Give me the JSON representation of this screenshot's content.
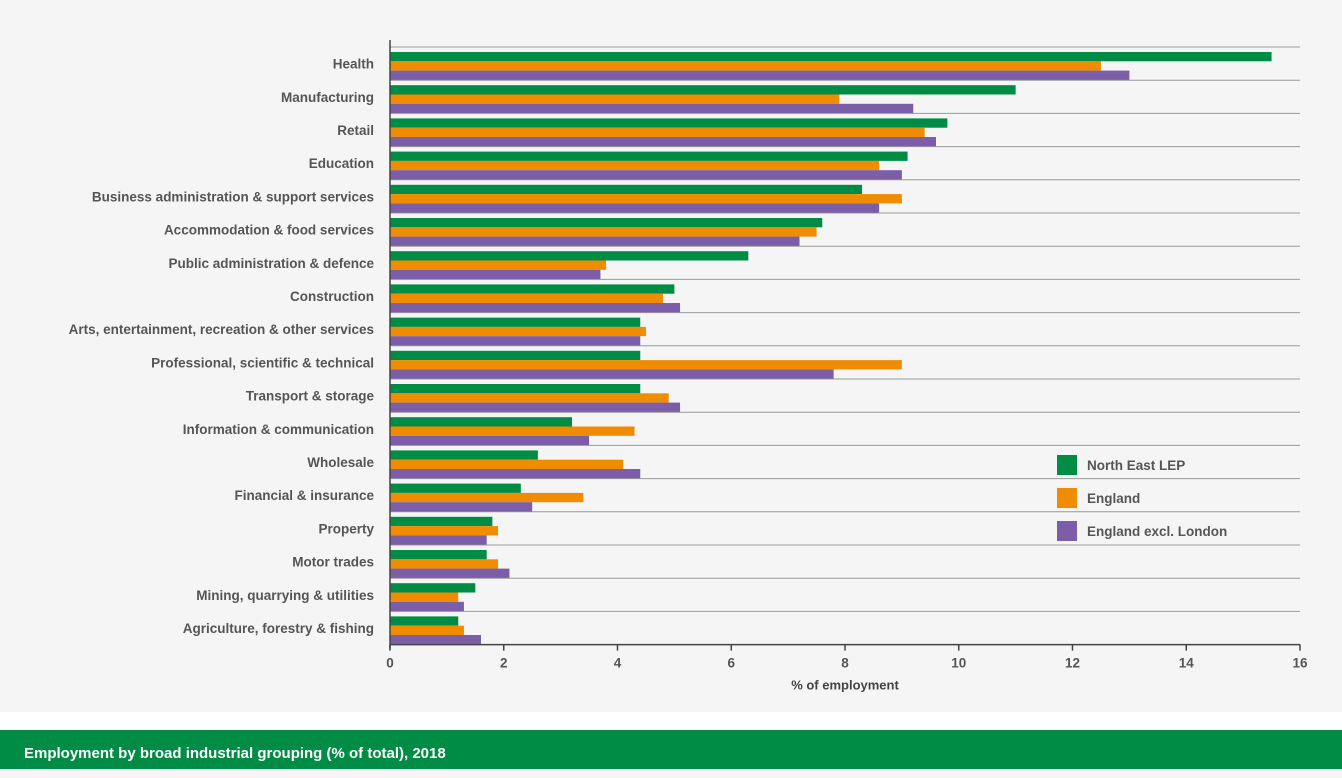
{
  "caption": "Employment by broad industrial grouping (% of total), 2018",
  "chart_data": {
    "type": "bar",
    "orientation": "horizontal",
    "title": "",
    "xlabel": "% of employment",
    "ylabel": "",
    "xlim": [
      0,
      16
    ],
    "xticks": [
      0,
      2,
      4,
      6,
      8,
      10,
      12,
      14,
      16
    ],
    "grid": "horizontal separators between categories",
    "legend_position": "bottom-right",
    "categories": [
      "Health",
      "Manufacturing",
      "Retail",
      "Education",
      "Business administration & support services",
      "Accommodation & food services",
      "Public administration & defence",
      "Construction",
      "Arts, entertainment, recreation & other services",
      "Professional, scientific & technical",
      "Transport & storage",
      "Information & communication",
      "Wholesale",
      "Financial & insurance",
      "Property",
      "Motor trades",
      "Mining, quarrying & utilities",
      "Agriculture, forestry & fishing"
    ],
    "series": [
      {
        "name": "North East LEP",
        "color": "#008c45",
        "values": [
          15.5,
          11.0,
          9.8,
          9.1,
          8.3,
          7.6,
          6.3,
          5.0,
          4.4,
          4.4,
          4.4,
          3.2,
          2.6,
          2.3,
          1.8,
          1.7,
          1.5,
          1.2
        ]
      },
      {
        "name": "England",
        "color": "#f08c00",
        "values": [
          12.5,
          7.9,
          9.4,
          8.6,
          9.0,
          7.5,
          3.8,
          4.8,
          4.5,
          9.0,
          4.9,
          4.3,
          4.1,
          3.4,
          1.9,
          1.9,
          1.2,
          1.3
        ]
      },
      {
        "name": "England excl. London",
        "color": "#7b5ea7",
        "values": [
          13.0,
          9.2,
          9.6,
          9.0,
          8.6,
          7.2,
          3.7,
          5.1,
          4.4,
          7.8,
          5.1,
          3.5,
          4.4,
          2.5,
          1.7,
          2.1,
          1.3,
          1.6
        ]
      }
    ]
  }
}
